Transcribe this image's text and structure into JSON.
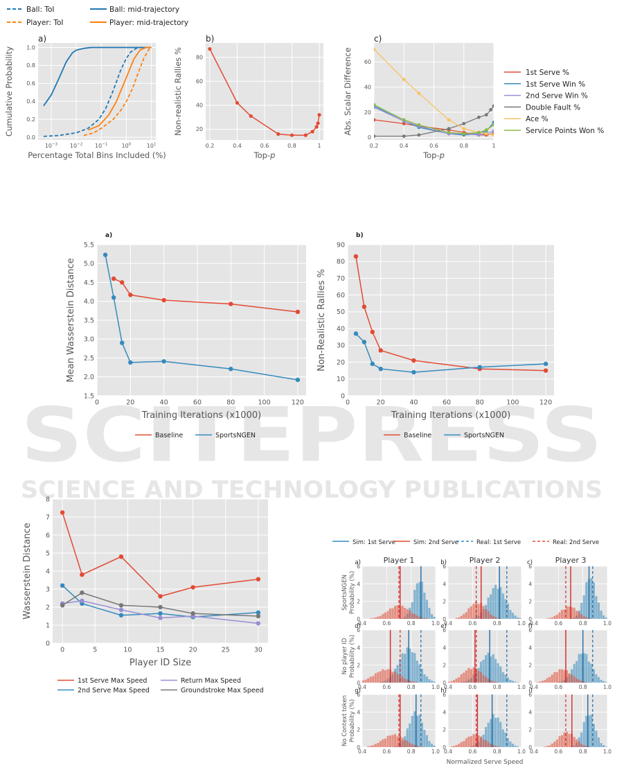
{
  "watermark": {
    "main": "SCITEPRESS",
    "sub": "SCIENCE AND TECHNOLOGY PUBLICATIONS"
  },
  "chart_data": [
    {
      "id": "fig1a",
      "type": "line",
      "panel_label": "a)",
      "xlabel": "Percentage Total Bins Included (%)",
      "ylabel": "Cumulative Probability",
      "xscale": "log",
      "xlim": [
        0.0003,
        15
      ],
      "ylim": [
        -0.03,
        1.05
      ],
      "xticks": [
        {
          "v": 0.001,
          "b": "10",
          "e": "−3"
        },
        {
          "v": 0.01,
          "b": "10",
          "e": "−2"
        },
        {
          "v": 0.1,
          "b": "10",
          "e": "−1"
        },
        {
          "v": 1,
          "b": "10",
          "e": "0"
        },
        {
          "v": 10,
          "b": "10",
          "e": "1"
        }
      ],
      "yticks": [
        "0.0",
        "0.2",
        "0.4",
        "0.6",
        "0.8",
        "1.0"
      ],
      "legend_position": "above",
      "grid": true,
      "series": [
        {
          "name": "Ball: ToI",
          "color": "#1f77b4",
          "dash": true,
          "x": [
            0.0005,
            0.002,
            0.01,
            0.03,
            0.08,
            0.15,
            0.3,
            0.6,
            1.0,
            1.5,
            2.5,
            4,
            10
          ],
          "y": [
            0.01,
            0.02,
            0.05,
            0.1,
            0.2,
            0.32,
            0.52,
            0.75,
            0.88,
            0.95,
            0.99,
            1.0,
            1.0
          ]
        },
        {
          "name": "Player: ToI",
          "color": "#ff7f0e",
          "dash": true,
          "x": [
            0.02,
            0.05,
            0.1,
            0.3,
            0.6,
            1.0,
            1.8,
            3,
            5,
            8,
            10
          ],
          "y": [
            0.02,
            0.05,
            0.1,
            0.2,
            0.3,
            0.4,
            0.55,
            0.72,
            0.88,
            0.98,
            1.0
          ]
        },
        {
          "name": "Ball: mid-trajectory",
          "color": "#1f77b4",
          "dash": false,
          "x": [
            0.0005,
            0.001,
            0.002,
            0.004,
            0.007,
            0.01,
            0.02,
            0.04,
            0.1,
            1,
            10
          ],
          "y": [
            0.35,
            0.47,
            0.65,
            0.84,
            0.94,
            0.97,
            0.99,
            1.0,
            1.0,
            1.0,
            1.0
          ]
        },
        {
          "name": "Player: mid-trajectory",
          "color": "#ff7f0e",
          "dash": false,
          "x": [
            0.03,
            0.08,
            0.2,
            0.4,
            0.8,
            1.2,
            2,
            3.5,
            6,
            10
          ],
          "y": [
            0.08,
            0.13,
            0.25,
            0.4,
            0.6,
            0.72,
            0.87,
            0.97,
            1.0,
            1.0
          ]
        }
      ]
    },
    {
      "id": "fig1b",
      "type": "line",
      "panel_label": "b)",
      "xlabel": "Top-p",
      "ylabel": "Non-realistic Rallies %",
      "xlim": [
        0.17,
        1.03
      ],
      "ylim": [
        11,
        92
      ],
      "xticks": [
        0.2,
        0.4,
        0.6,
        0.8,
        1.0
      ],
      "yticks": [
        20,
        40,
        60,
        80
      ],
      "grid": true,
      "series": [
        {
          "color": "#e24a33",
          "x": [
            0.2,
            0.4,
            0.5,
            0.7,
            0.8,
            0.9,
            0.95,
            0.98,
            0.99,
            1.0
          ],
          "y": [
            87,
            42,
            31,
            16,
            15,
            15,
            18,
            22,
            25,
            32
          ]
        }
      ]
    },
    {
      "id": "fig1c",
      "type": "line",
      "panel_label": "c)",
      "xlabel": "Top-p",
      "ylabel": "Abs. Scalar Difference",
      "xlim": [
        0.2,
        1.0
      ],
      "ylim": [
        -2,
        75
      ],
      "xticks": [
        0.2,
        0.4,
        0.6,
        0.8,
        1.0
      ],
      "yticks": [
        0,
        20,
        40,
        60
      ],
      "legend_position": "right",
      "grid": true,
      "series": [
        {
          "name": "1st Serve %",
          "color": "#e24a33",
          "x": [
            0.2,
            0.4,
            0.5,
            0.7,
            0.8,
            0.9,
            0.95,
            1.0
          ],
          "y": [
            14,
            11,
            9,
            6,
            4,
            2,
            2,
            3
          ]
        },
        {
          "name": "1st Serve Win %",
          "color": "#348abd",
          "x": [
            0.2,
            0.4,
            0.5,
            0.7,
            0.8,
            0.9,
            0.95,
            1.0
          ],
          "y": [
            25,
            13,
            8,
            3,
            2,
            3,
            5,
            12
          ]
        },
        {
          "name": "2nd Serve Win %",
          "color": "#988ed5",
          "x": [
            0.2,
            0.4,
            0.5,
            0.7,
            0.8,
            0.9,
            0.95,
            1.0
          ],
          "y": [
            24,
            13,
            9,
            3,
            3,
            2,
            3,
            5
          ]
        },
        {
          "name": "Double Fault %",
          "color": "#777777",
          "x": [
            0.2,
            0.4,
            0.5,
            0.7,
            0.8,
            0.9,
            0.95,
            0.98,
            1.0
          ],
          "y": [
            1,
            1,
            2,
            7,
            11,
            16,
            18,
            22,
            25
          ]
        },
        {
          "name": "Ace %",
          "color": "#fbc15e",
          "x": [
            0.2,
            0.4,
            0.5,
            0.7,
            0.8,
            0.9,
            0.95,
            1.0
          ],
          "y": [
            70,
            46,
            35,
            14,
            7,
            4,
            3,
            2
          ]
        },
        {
          "name": "Service Points Won %",
          "color": "#8eba42",
          "x": [
            0.2,
            0.4,
            0.5,
            0.7,
            0.8,
            0.9,
            0.95,
            1.0
          ],
          "y": [
            26,
            14,
            10,
            4,
            3,
            4,
            6,
            10
          ]
        }
      ]
    },
    {
      "id": "fig2a",
      "type": "line",
      "panel_label": "a)",
      "xlabel": "Training Iterations (x1000)",
      "ylabel": "Mean Wasserstein Distance",
      "xlim": [
        0,
        125
      ],
      "ylim": [
        1.5,
        5.5
      ],
      "xticks": [
        0,
        20,
        40,
        60,
        80,
        100,
        120
      ],
      "yticks": [
        "1.5",
        "2.0",
        "2.5",
        "3.0",
        "3.5",
        "4.0",
        "4.5",
        "5.0",
        "5.5"
      ],
      "legend_position": "below",
      "grid": true,
      "series": [
        {
          "name": "Baseline",
          "color": "#e24a33",
          "x": [
            10,
            15,
            20,
            40,
            80,
            120
          ],
          "y": [
            4.6,
            4.5,
            4.17,
            4.03,
            3.93,
            3.72
          ]
        },
        {
          "name": "SportsNGEN",
          "color": "#348abd",
          "x": [
            5,
            10,
            15,
            20,
            40,
            80,
            120
          ],
          "y": [
            5.23,
            4.1,
            2.9,
            2.38,
            2.41,
            2.21,
            1.92
          ]
        }
      ]
    },
    {
      "id": "fig2b",
      "type": "line",
      "panel_label": "b)",
      "xlabel": "Training Iterations (x1000)",
      "ylabel": "Non-Realistic Rallies %",
      "xlim": [
        0,
        125
      ],
      "ylim": [
        0,
        90
      ],
      "xticks": [
        0,
        20,
        40,
        60,
        80,
        100,
        120
      ],
      "yticks": [
        0,
        10,
        20,
        30,
        40,
        50,
        60,
        70,
        80,
        90
      ],
      "legend_position": "below",
      "grid": true,
      "series": [
        {
          "name": "Baseline",
          "color": "#e24a33",
          "x": [
            5,
            10,
            15,
            20,
            40,
            80,
            120
          ],
          "y": [
            83,
            53,
            38,
            27,
            21,
            16,
            15
          ]
        },
        {
          "name": "SportsNGEN",
          "color": "#348abd",
          "x": [
            5,
            10,
            15,
            20,
            40,
            80,
            120
          ],
          "y": [
            37,
            32,
            19,
            16,
            14,
            17,
            19
          ]
        }
      ]
    },
    {
      "id": "fig3",
      "type": "line",
      "xlabel": "Player ID Size",
      "ylabel": "Wasserstein Distance",
      "xlim": [
        -1.5,
        31.5
      ],
      "ylim": [
        0,
        8
      ],
      "xticks": [
        0,
        5,
        10,
        15,
        20,
        25,
        30
      ],
      "yticks": [
        0,
        1,
        2,
        3,
        4,
        5,
        6,
        7,
        8
      ],
      "legend_position": "below",
      "grid": true,
      "series": [
        {
          "name": "1st Serve Max Speed",
          "color": "#e24a33",
          "x": [
            0,
            3,
            9,
            15,
            20,
            30
          ],
          "y": [
            7.25,
            3.8,
            4.8,
            2.6,
            3.1,
            3.55
          ]
        },
        {
          "name": "2nd Serve Max Speed",
          "color": "#348abd",
          "x": [
            0,
            3,
            9,
            15,
            20,
            30
          ],
          "y": [
            3.2,
            2.2,
            1.55,
            1.65,
            1.45,
            1.7
          ]
        },
        {
          "name": "Return Max Speed",
          "color": "#988ed5",
          "x": [
            0,
            3,
            9,
            15,
            20,
            30
          ],
          "y": [
            2.2,
            2.35,
            1.85,
            1.4,
            1.5,
            1.1
          ]
        },
        {
          "name": "Groundstroke Max Speed",
          "color": "#777777",
          "x": [
            0,
            3,
            9,
            15,
            20,
            30
          ],
          "y": [
            2.1,
            2.8,
            2.1,
            2.0,
            1.65,
            1.5
          ]
        }
      ]
    },
    {
      "id": "fig4",
      "type": "histogram",
      "xlabel": "Normalized Serve Speed",
      "xlim": [
        0.4,
        1.0
      ],
      "ylim": [
        0,
        6
      ],
      "xticks": [
        "0.4",
        "0.6",
        "0.8",
        "1.0"
      ],
      "yticks": [
        0,
        2,
        4,
        6
      ],
      "legend_position": "top",
      "legend": [
        {
          "name": "Sim: 1st Serve",
          "color": "#348abd",
          "dash": false
        },
        {
          "name": "Sim: 2nd Serve",
          "color": "#e24a33",
          "dash": false
        },
        {
          "name": "Real: 1st Serve",
          "color": "#348abd",
          "dash": true
        },
        {
          "name": "Real: 2nd Serve",
          "color": "#e24a33",
          "dash": true
        }
      ],
      "column_titles": [
        "Player 1",
        "Player 2",
        "Player 3"
      ],
      "row_labels": [
        [
          "SportsNGEN",
          "Probability (%)"
        ],
        [
          "No player ID",
          "Probability (%)"
        ],
        [
          "No Context token",
          "Probability (%)"
        ]
      ],
      "panels": [
        {
          "label": "a)",
          "first": {
            "mu": 0.87,
            "sd": 0.05,
            "peak": 4.6
          },
          "second": {
            "mu": 0.7,
            "sd": 0.09,
            "peak": 1.6
          },
          "lines": {
            "sim1": 0.88,
            "sim2": 0.71,
            "real1": 0.88,
            "real2": 0.7
          }
        },
        {
          "label": "b)",
          "first": {
            "mu": 0.8,
            "sd": 0.07,
            "peak": 4.0
          },
          "second": {
            "mu": 0.64,
            "sd": 0.07,
            "peak": 2.0
          },
          "lines": {
            "sim1": 0.82,
            "sim2": 0.67,
            "real1": 0.88,
            "real2": 0.63
          }
        },
        {
          "label": "c)",
          "first": {
            "mu": 0.86,
            "sd": 0.05,
            "peak": 5.0
          },
          "second": {
            "mu": 0.69,
            "sd": 0.07,
            "peak": 1.5
          },
          "lines": {
            "sim1": 0.85,
            "sim2": 0.7,
            "real1": 0.88,
            "real2": 0.66
          }
        },
        {
          "label": "d)",
          "first": {
            "mu": 0.78,
            "sd": 0.08,
            "peak": 4.1
          },
          "second": {
            "mu": 0.6,
            "sd": 0.1,
            "peak": 1.6
          },
          "lines": {
            "sim1": 0.78,
            "sim2": 0.63,
            "real1": 0.88,
            "real2": 0.71
          }
        },
        {
          "label": "e)",
          "first": {
            "mu": 0.74,
            "sd": 0.08,
            "peak": 3.5
          },
          "second": {
            "mu": 0.6,
            "sd": 0.08,
            "peak": 1.8
          },
          "lines": {
            "sim1": 0.74,
            "sim2": 0.62,
            "real1": 0.88,
            "real2": 0.63
          }
        },
        {
          "label": "f)",
          "first": {
            "mu": 0.8,
            "sd": 0.07,
            "peak": 3.6
          },
          "second": {
            "mu": 0.63,
            "sd": 0.08,
            "peak": 1.6
          },
          "lines": {
            "sim1": 0.8,
            "sim2": 0.66,
            "real1": 0.88,
            "real2": 0.66
          }
        },
        {
          "label": "g)",
          "first": {
            "mu": 0.84,
            "sd": 0.06,
            "peak": 4.2
          },
          "second": {
            "mu": 0.66,
            "sd": 0.09,
            "peak": 1.5
          },
          "lines": {
            "sim1": 0.84,
            "sim2": 0.71,
            "real1": 0.88,
            "real2": 0.7
          }
        },
        {
          "label": "h)",
          "first": {
            "mu": 0.78,
            "sd": 0.07,
            "peak": 3.8
          },
          "second": {
            "mu": 0.62,
            "sd": 0.08,
            "peak": 1.5
          },
          "lines": {
            "sim1": 0.76,
            "sim2": 0.64,
            "real1": 0.88,
            "real2": 0.63
          }
        },
        {
          "label": "i)",
          "first": {
            "mu": 0.85,
            "sd": 0.05,
            "peak": 4.0
          },
          "second": {
            "mu": 0.67,
            "sd": 0.07,
            "peak": 1.8
          },
          "lines": {
            "sim1": 0.84,
            "sim2": 0.71,
            "real1": 0.88,
            "real2": 0.66
          }
        }
      ]
    }
  ]
}
